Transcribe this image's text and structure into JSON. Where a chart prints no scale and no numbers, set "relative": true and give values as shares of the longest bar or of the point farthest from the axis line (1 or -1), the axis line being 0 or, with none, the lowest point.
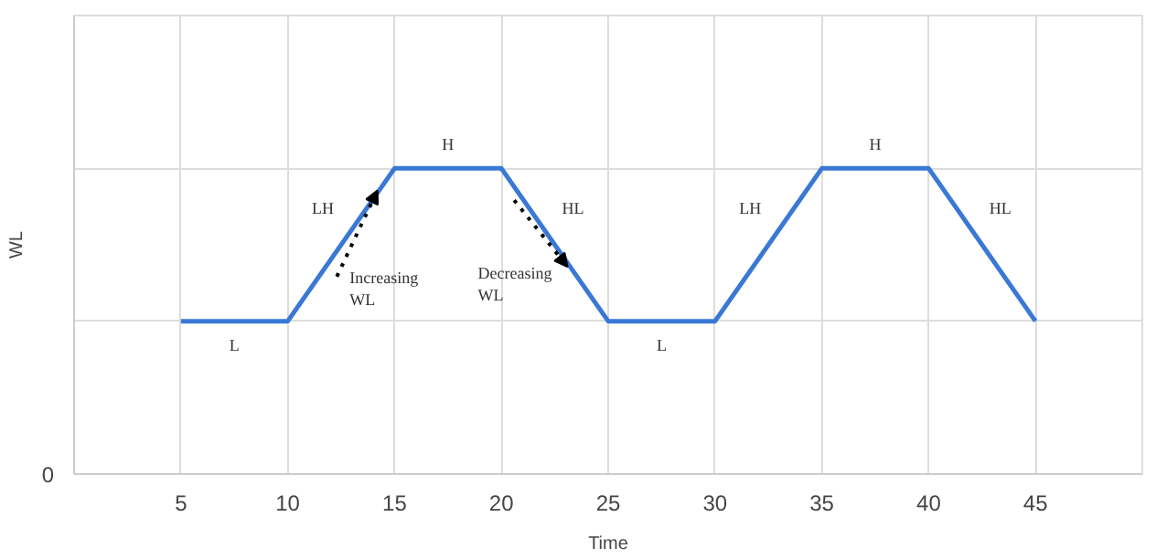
{
  "chart_data": {
    "type": "line",
    "xlabel": "Time",
    "ylabel": "WL",
    "relative": true,
    "x": [
      5,
      10,
      15,
      20,
      25,
      30,
      35,
      40,
      45
    ],
    "series": [
      {
        "color": "#3a78d6",
        "values": [
          0.5,
          0.5,
          1,
          1,
          0.5,
          0.5,
          1,
          1,
          0.5
        ]
      }
    ],
    "xlim": [
      0,
      50
    ],
    "xticks": [
      5,
      10,
      15,
      20,
      25,
      30,
      35,
      40,
      45
    ],
    "grid": true,
    "marker": "none",
    "line_style": "solid",
    "annotations": [
      "0",
      "L",
      "LH",
      "H",
      "HL",
      "Increasing WL",
      "Decreasing WL",
      "L",
      "LH",
      "H",
      "HL"
    ]
  }
}
